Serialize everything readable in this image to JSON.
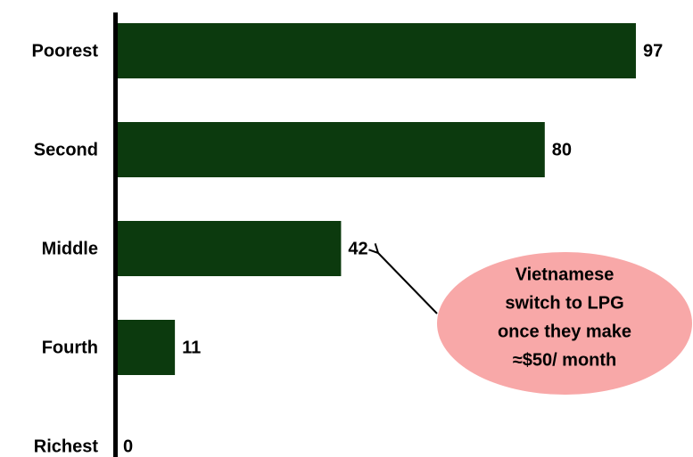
{
  "chart_data": {
    "type": "bar",
    "orientation": "horizontal",
    "categories": [
      "Poorest",
      "Second",
      "Middle",
      "Fourth",
      "Richest"
    ],
    "values": [
      97,
      80,
      42,
      11,
      0
    ],
    "color": "#0c3a0e",
    "xlim": [
      0,
      100
    ],
    "annotation": {
      "lines": [
        "Vietnamese",
        "switch to LPG",
        "once they make",
        "≈$50/ month"
      ],
      "color": "#f8a8a8"
    }
  }
}
